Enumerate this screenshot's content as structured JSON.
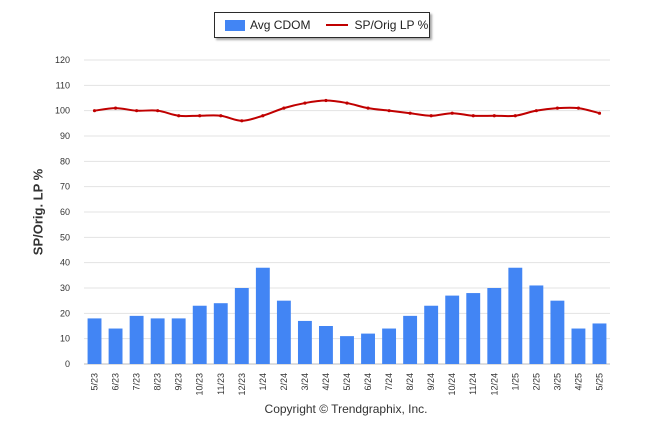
{
  "chart_data": {
    "type": "bar",
    "categories": [
      "5/23",
      "6/23",
      "7/23",
      "8/23",
      "9/23",
      "10/23",
      "11/23",
      "12/23",
      "1/24",
      "2/24",
      "3/24",
      "4/24",
      "5/24",
      "6/24",
      "7/24",
      "8/24",
      "9/24",
      "10/24",
      "11/24",
      "12/24",
      "1/25",
      "2/25",
      "3/25",
      "4/25",
      "5/25"
    ],
    "series": [
      {
        "name": "Avg CDOM",
        "type": "bar",
        "color": "#4285f4",
        "values": [
          18,
          14,
          19,
          18,
          18,
          23,
          24,
          30,
          38,
          25,
          17,
          15,
          11,
          12,
          14,
          19,
          23,
          27,
          28,
          30,
          38,
          31,
          25,
          14,
          16
        ]
      },
      {
        "name": "SP/Orig LP %",
        "type": "line",
        "color": "#c00000",
        "values": [
          100,
          101,
          100,
          100,
          98,
          98,
          98,
          96,
          98,
          101,
          103,
          104,
          103,
          101,
          100,
          99,
          98,
          99,
          98,
          98,
          98,
          100,
          101,
          101,
          99
        ]
      }
    ],
    "ylabel": "SP/Orig. LP %",
    "xlabel": "",
    "ylim": [
      0,
      120
    ],
    "yticks": [
      0,
      10,
      20,
      30,
      40,
      50,
      60,
      70,
      80,
      90,
      100,
      110,
      120
    ],
    "grid": true,
    "legend_position": "top-center"
  },
  "footer": {
    "copyright": "Copyright © Trendgraphix, Inc."
  }
}
